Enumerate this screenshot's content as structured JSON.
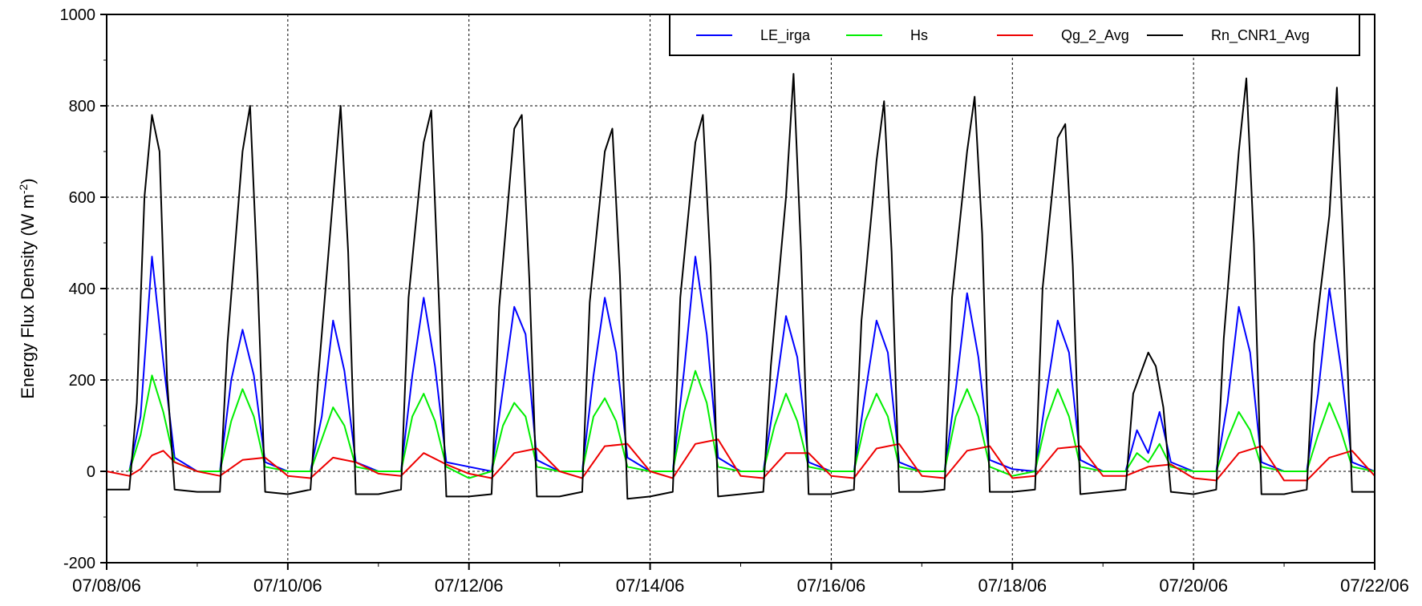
{
  "chart_data": {
    "type": "line",
    "title": "",
    "xlabel": "",
    "ylabel": "Energy Flux Density (W m",
    "ylabel_superscript": "-2",
    "ylabel_suffix": ")",
    "ylim": [
      -200,
      1000
    ],
    "yticks": [
      -200,
      0,
      200,
      400,
      600,
      800,
      1000
    ],
    "ytick_labels": [
      "-200",
      "0",
      "200",
      "400",
      "600",
      "800",
      "1000"
    ],
    "xlim": [
      "07/08/06",
      "07/22/06"
    ],
    "xticks": [
      "07/08/06",
      "07/10/06",
      "07/12/06",
      "07/14/06",
      "07/16/06",
      "07/18/06",
      "07/20/06",
      "07/22/06"
    ],
    "grid": true,
    "legend_position": "top-right",
    "series": [
      {
        "name": "LE_irga",
        "color": "#0000ff",
        "x": [
          "07/08/06 06:00",
          "07/08/06 09:00",
          "07/08/06 12:00",
          "07/08/06 15:00",
          "07/08/06 18:00",
          "07/09/06 00:00",
          "07/09/06 06:00",
          "07/09/06 09:00",
          "07/09/06 12:00",
          "07/09/06 15:00",
          "07/09/06 18:00",
          "07/10/06 00:00",
          "07/10/06 06:00",
          "07/10/06 09:00",
          "07/10/06 12:00",
          "07/10/06 15:00",
          "07/10/06 18:00",
          "07/11/06 00:00",
          "07/11/06 06:00",
          "07/11/06 09:00",
          "07/11/06 12:00",
          "07/11/06 15:00",
          "07/11/06 18:00",
          "07/12/06 00:00",
          "07/12/06 06:00",
          "07/12/06 09:00",
          "07/12/06 12:00",
          "07/12/06 15:00",
          "07/12/06 18:00",
          "07/13/06 00:00",
          "07/13/06 06:00",
          "07/13/06 09:00",
          "07/13/06 12:00",
          "07/13/06 15:00",
          "07/13/06 18:00",
          "07/14/06 00:00",
          "07/14/06 06:00",
          "07/14/06 09:00",
          "07/14/06 12:00",
          "07/14/06 15:00",
          "07/14/06 18:00",
          "07/15/06 00:00",
          "07/15/06 06:00",
          "07/15/06 09:00",
          "07/15/06 12:00",
          "07/15/06 15:00",
          "07/15/06 18:00",
          "07/16/06 00:00",
          "07/16/06 06:00",
          "07/16/06 09:00",
          "07/16/06 12:00",
          "07/16/06 15:00",
          "07/16/06 18:00",
          "07/17/06 00:00",
          "07/17/06 06:00",
          "07/17/06 09:00",
          "07/17/06 12:00",
          "07/17/06 15:00",
          "07/17/06 18:00",
          "07/18/06 00:00",
          "07/18/06 06:00",
          "07/18/06 09:00",
          "07/18/06 12:00",
          "07/18/06 15:00",
          "07/18/06 18:00",
          "07/19/06 00:00",
          "07/19/06 06:00",
          "07/19/06 09:00",
          "07/19/06 12:00",
          "07/19/06 15:00",
          "07/19/06 18:00",
          "07/20/06 00:00",
          "07/20/06 06:00",
          "07/20/06 09:00",
          "07/20/06 12:00",
          "07/20/06 15:00",
          "07/20/06 18:00",
          "07/21/06 00:00",
          "07/21/06 06:00",
          "07/21/06 09:00",
          "07/21/06 12:00",
          "07/21/06 15:00",
          "07/21/06 18:00",
          "07/22/06 00:00"
        ],
        "values": [
          0,
          120,
          470,
          240,
          30,
          0,
          0,
          200,
          310,
          210,
          20,
          0,
          0,
          120,
          330,
          220,
          20,
          0,
          0,
          210,
          380,
          230,
          20,
          10,
          0,
          180,
          360,
          300,
          25,
          0,
          0,
          210,
          380,
          260,
          30,
          0,
          0,
          220,
          470,
          300,
          30,
          0,
          0,
          160,
          340,
          250,
          20,
          0,
          0,
          170,
          330,
          260,
          20,
          0,
          0,
          180,
          390,
          250,
          25,
          5,
          0,
          170,
          330,
          260,
          25,
          0,
          0,
          90,
          40,
          130,
          20,
          0,
          0,
          150,
          360,
          260,
          20,
          0,
          0,
          170,
          400,
          230,
          20,
          0
        ]
      },
      {
        "name": "Hs",
        "color": "#00ee00",
        "x": [
          "07/08/06 06:00",
          "07/08/06 09:00",
          "07/08/06 12:00",
          "07/08/06 15:00",
          "07/08/06 18:00",
          "07/09/06 00:00",
          "07/09/06 06:00",
          "07/09/06 09:00",
          "07/09/06 12:00",
          "07/09/06 15:00",
          "07/09/06 18:00",
          "07/10/06 00:00",
          "07/10/06 06:00",
          "07/10/06 09:00",
          "07/10/06 12:00",
          "07/10/06 15:00",
          "07/10/06 18:00",
          "07/11/06 00:00",
          "07/11/06 06:00",
          "07/11/06 09:00",
          "07/11/06 12:00",
          "07/11/06 15:00",
          "07/11/06 18:00",
          "07/12/06 00:00",
          "07/12/06 06:00",
          "07/12/06 09:00",
          "07/12/06 12:00",
          "07/12/06 15:00",
          "07/12/06 18:00",
          "07/13/06 00:00",
          "07/13/06 06:00",
          "07/13/06 09:00",
          "07/13/06 12:00",
          "07/13/06 15:00",
          "07/13/06 18:00",
          "07/14/06 00:00",
          "07/14/06 06:00",
          "07/14/06 09:00",
          "07/14/06 12:00",
          "07/14/06 15:00",
          "07/14/06 18:00",
          "07/15/06 00:00",
          "07/15/06 06:00",
          "07/15/06 09:00",
          "07/15/06 12:00",
          "07/15/06 15:00",
          "07/15/06 18:00",
          "07/16/06 00:00",
          "07/16/06 06:00",
          "07/16/06 09:00",
          "07/16/06 12:00",
          "07/16/06 15:00",
          "07/16/06 18:00",
          "07/17/06 00:00",
          "07/17/06 06:00",
          "07/17/06 09:00",
          "07/17/06 12:00",
          "07/17/06 15:00",
          "07/17/06 18:00",
          "07/18/06 00:00",
          "07/18/06 06:00",
          "07/18/06 09:00",
          "07/18/06 12:00",
          "07/18/06 15:00",
          "07/18/06 18:00",
          "07/19/06 00:00",
          "07/19/06 06:00",
          "07/19/06 09:00",
          "07/19/06 12:00",
          "07/19/06 15:00",
          "07/19/06 18:00",
          "07/20/06 00:00",
          "07/20/06 06:00",
          "07/20/06 09:00",
          "07/20/06 12:00",
          "07/20/06 15:00",
          "07/20/06 18:00",
          "07/21/06 00:00",
          "07/21/06 06:00",
          "07/21/06 09:00",
          "07/21/06 12:00",
          "07/21/06 15:00",
          "07/21/06 18:00",
          "07/22/06 00:00"
        ],
        "values": [
          0,
          80,
          210,
          130,
          20,
          0,
          0,
          110,
          180,
          120,
          10,
          0,
          0,
          70,
          140,
          100,
          10,
          0,
          0,
          120,
          170,
          110,
          10,
          -15,
          0,
          100,
          150,
          120,
          10,
          0,
          0,
          120,
          160,
          110,
          10,
          0,
          0,
          130,
          220,
          150,
          10,
          0,
          0,
          100,
          170,
          110,
          10,
          0,
          0,
          110,
          170,
          120,
          10,
          0,
          0,
          120,
          180,
          120,
          10,
          -10,
          0,
          110,
          180,
          120,
          10,
          0,
          0,
          40,
          20,
          60,
          10,
          0,
          0,
          70,
          130,
          90,
          10,
          0,
          0,
          80,
          150,
          90,
          10,
          0
        ]
      },
      {
        "name": "Qg_2_Avg",
        "color": "#ee0000",
        "x": [
          "07/08/06 00:00",
          "07/08/06 06:00",
          "07/08/06 09:00",
          "07/08/06 12:00",
          "07/08/06 15:00",
          "07/08/06 18:00",
          "07/09/06 00:00",
          "07/09/06 06:00",
          "07/09/06 12:00",
          "07/09/06 18:00",
          "07/10/06 00:00",
          "07/10/06 06:00",
          "07/10/06 12:00",
          "07/10/06 18:00",
          "07/11/06 00:00",
          "07/11/06 06:00",
          "07/11/06 12:00",
          "07/11/06 18:00",
          "07/12/06 00:00",
          "07/12/06 06:00",
          "07/12/06 12:00",
          "07/12/06 18:00",
          "07/13/06 00:00",
          "07/13/06 06:00",
          "07/13/06 12:00",
          "07/13/06 18:00",
          "07/14/06 00:00",
          "07/14/06 06:00",
          "07/14/06 12:00",
          "07/14/06 18:00",
          "07/15/06 00:00",
          "07/15/06 06:00",
          "07/15/06 12:00",
          "07/15/06 18:00",
          "07/16/06 00:00",
          "07/16/06 06:00",
          "07/16/06 12:00",
          "07/16/06 18:00",
          "07/17/06 00:00",
          "07/17/06 06:00",
          "07/17/06 12:00",
          "07/17/06 18:00",
          "07/18/06 00:00",
          "07/18/06 06:00",
          "07/18/06 12:00",
          "07/18/06 18:00",
          "07/19/06 00:00",
          "07/19/06 06:00",
          "07/19/06 12:00",
          "07/19/06 18:00",
          "07/20/06 00:00",
          "07/20/06 06:00",
          "07/20/06 12:00",
          "07/20/06 18:00",
          "07/21/06 00:00",
          "07/21/06 06:00",
          "07/21/06 12:00",
          "07/21/06 18:00",
          "07/22/06 00:00"
        ],
        "values": [
          0,
          -10,
          5,
          35,
          45,
          20,
          0,
          -10,
          25,
          30,
          -10,
          -15,
          30,
          20,
          -5,
          -10,
          40,
          15,
          -5,
          -15,
          40,
          50,
          0,
          -15,
          55,
          60,
          0,
          -15,
          60,
          70,
          -10,
          -15,
          40,
          40,
          -10,
          -15,
          50,
          60,
          -10,
          -15,
          45,
          55,
          -15,
          -10,
          50,
          55,
          -10,
          -10,
          10,
          15,
          -15,
          -20,
          40,
          55,
          -20,
          -20,
          30,
          45,
          -10
        ]
      },
      {
        "name": "Rn_CNR1_Avg",
        "color": "#000000",
        "x": [
          "07/08/06 00:00",
          "07/08/06 06:00",
          "07/08/06 08:00",
          "07/08/06 10:00",
          "07/08/06 12:00",
          "07/08/06 14:00",
          "07/08/06 16:00",
          "07/08/06 18:00",
          "07/09/06 00:00",
          "07/09/06 06:00",
          "07/09/06 08:00",
          "07/09/06 12:00",
          "07/09/06 14:00",
          "07/09/06 16:00",
          "07/09/06 18:00",
          "07/10/06 00:00",
          "07/10/06 06:00",
          "07/10/06 08:00",
          "07/10/06 12:00",
          "07/10/06 14:00",
          "07/10/06 16:00",
          "07/10/06 18:00",
          "07/11/06 00:00",
          "07/11/06 06:00",
          "07/11/06 08:00",
          "07/11/06 12:00",
          "07/11/06 14:00",
          "07/11/06 16:00",
          "07/11/06 18:00",
          "07/12/06 00:00",
          "07/12/06 06:00",
          "07/12/06 08:00",
          "07/12/06 12:00",
          "07/12/06 14:00",
          "07/12/06 16:00",
          "07/12/06 18:00",
          "07/13/06 00:00",
          "07/13/06 06:00",
          "07/13/06 08:00",
          "07/13/06 12:00",
          "07/13/06 14:00",
          "07/13/06 16:00",
          "07/13/06 18:00",
          "07/14/06 00:00",
          "07/14/06 06:00",
          "07/14/06 08:00",
          "07/14/06 12:00",
          "07/14/06 14:00",
          "07/14/06 16:00",
          "07/14/06 18:00",
          "07/15/06 00:00",
          "07/15/06 06:00",
          "07/15/06 08:00",
          "07/15/06 12:00",
          "07/15/06 14:00",
          "07/15/06 16:00",
          "07/15/06 18:00",
          "07/16/06 00:00",
          "07/16/06 06:00",
          "07/16/06 08:00",
          "07/16/06 12:00",
          "07/16/06 14:00",
          "07/16/06 16:00",
          "07/16/06 18:00",
          "07/17/06 00:00",
          "07/17/06 06:00",
          "07/17/06 08:00",
          "07/17/06 12:00",
          "07/17/06 14:00",
          "07/17/06 16:00",
          "07/17/06 18:00",
          "07/18/06 00:00",
          "07/18/06 06:00",
          "07/18/06 08:00",
          "07/18/06 12:00",
          "07/18/06 14:00",
          "07/18/06 16:00",
          "07/18/06 18:00",
          "07/19/06 00:00",
          "07/19/06 06:00",
          "07/19/06 08:00",
          "07/19/06 12:00",
          "07/19/06 14:00",
          "07/19/06 16:00",
          "07/19/06 18:00",
          "07/20/06 00:00",
          "07/20/06 06:00",
          "07/20/06 08:00",
          "07/20/06 12:00",
          "07/20/06 14:00",
          "07/20/06 16:00",
          "07/20/06 18:00",
          "07/21/06 00:00",
          "07/21/06 06:00",
          "07/21/06 08:00",
          "07/21/06 12:00",
          "07/21/06 14:00",
          "07/21/06 16:00",
          "07/21/06 18:00",
          "07/22/06 00:00"
        ],
        "values": [
          -40,
          -40,
          150,
          600,
          780,
          700,
          200,
          -40,
          -45,
          -45,
          280,
          700,
          800,
          420,
          -45,
          -50,
          -40,
          200,
          600,
          800,
          480,
          -50,
          -50,
          -40,
          380,
          720,
          790,
          380,
          -55,
          -55,
          -50,
          360,
          750,
          780,
          420,
          -55,
          -55,
          -45,
          370,
          700,
          750,
          430,
          -60,
          -55,
          -45,
          380,
          720,
          780,
          450,
          -55,
          -50,
          -45,
          230,
          600,
          870,
          480,
          -50,
          -50,
          -40,
          330,
          680,
          810,
          480,
          -45,
          -45,
          -40,
          380,
          700,
          820,
          520,
          -45,
          -45,
          -40,
          400,
          730,
          760,
          450,
          -50,
          -45,
          -40,
          170,
          260,
          230,
          140,
          -45,
          -50,
          -40,
          290,
          700,
          860,
          500,
          -50,
          -50,
          -40,
          280,
          560,
          840,
          420,
          -45,
          -45
        ]
      }
    ]
  }
}
